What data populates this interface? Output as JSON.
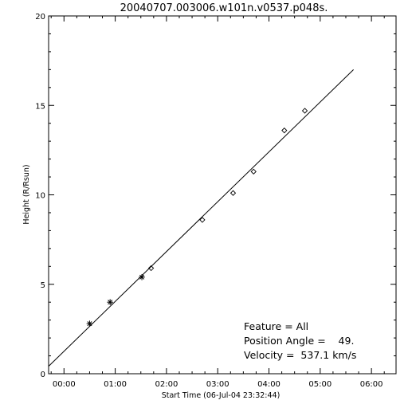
{
  "chart_data": {
    "type": "scatter",
    "title": "20040707.003006.w101n.v0537.p048s.",
    "xlabel": "Start Time (06-Jul-04 23:32:44)",
    "ylabel": "Height (R/Rsun)",
    "xlim_hours": [
      -0.3,
      6.48
    ],
    "ylim": [
      0,
      20
    ],
    "x_ticks": [
      {
        "value": 0,
        "label": "00:00"
      },
      {
        "value": 1,
        "label": "01:00"
      },
      {
        "value": 2,
        "label": "02:00"
      },
      {
        "value": 3,
        "label": "03:00"
      },
      {
        "value": 4,
        "label": "04:00"
      },
      {
        "value": 5,
        "label": "05:00"
      },
      {
        "value": 6,
        "label": "06:00"
      }
    ],
    "y_ticks": [
      {
        "value": 0,
        "label": "0"
      },
      {
        "value": 5,
        "label": "5"
      },
      {
        "value": 10,
        "label": "10"
      },
      {
        "value": 15,
        "label": "15"
      },
      {
        "value": 20,
        "label": "20"
      }
    ],
    "grid": false,
    "series": [
      {
        "marker": "asterisk",
        "x": [
          0.5,
          0.9,
          1.52
        ],
        "y": [
          2.8,
          4.0,
          5.4
        ]
      },
      {
        "marker": "diamond",
        "x": [
          1.7,
          2.7,
          3.3,
          3.7,
          4.3,
          4.7
        ],
        "y": [
          5.9,
          8.6,
          10.1,
          11.3,
          13.6,
          14.7
        ]
      }
    ],
    "fit_line": {
      "x": [
        -0.45,
        5.65
      ],
      "y": [
        0.0,
        17.0
      ]
    },
    "annotations": [
      "Feature = All",
      "Position Angle =    49.",
      "Velocity =  537.1 km/s"
    ]
  }
}
